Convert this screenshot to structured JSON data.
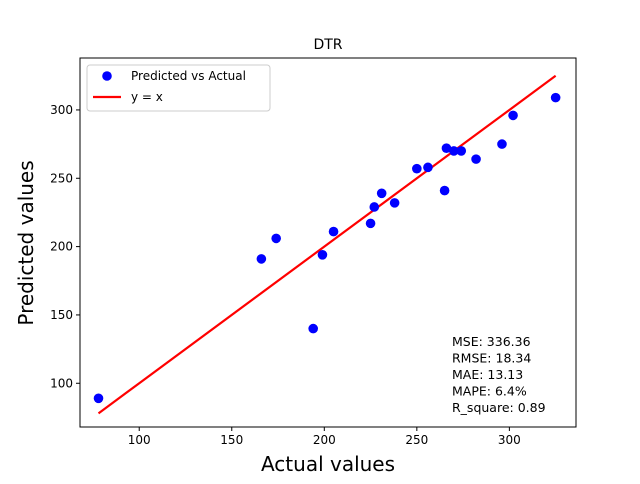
{
  "chart_data": {
    "type": "scatter",
    "title": "DTR",
    "xlabel": "Actual values",
    "ylabel": "Predicted values",
    "xlim": [
      68,
      336
    ],
    "ylim": [
      68,
      338
    ],
    "xticks": [
      100,
      150,
      200,
      250,
      300
    ],
    "yticks": [
      100,
      150,
      200,
      250,
      300
    ],
    "grid": false,
    "legend_position": "upper-left",
    "colors": {
      "points": "#0000ff",
      "line": "#ff0000"
    },
    "series": [
      {
        "name": "Predicted vs Actual",
        "type": "scatter",
        "points": [
          [
            78,
            89
          ],
          [
            166,
            191
          ],
          [
            174,
            206
          ],
          [
            194,
            140
          ],
          [
            199,
            194
          ],
          [
            205,
            211
          ],
          [
            225,
            217
          ],
          [
            227,
            229
          ],
          [
            231,
            239
          ],
          [
            238,
            232
          ],
          [
            250,
            257
          ],
          [
            256,
            258
          ],
          [
            265,
            241
          ],
          [
            266,
            272
          ],
          [
            270,
            270
          ],
          [
            274,
            270
          ],
          [
            282,
            264
          ],
          [
            296,
            275
          ],
          [
            302,
            296
          ],
          [
            325,
            309
          ]
        ]
      },
      {
        "name": "y = x",
        "type": "line",
        "points": [
          [
            78,
            78
          ],
          [
            325,
            325
          ]
        ]
      }
    ],
    "annotation_lines": [
      "MSE: 336.36",
      "RMSE: 18.34",
      "MAE: 13.13",
      "MAPE: 6.4%",
      "R_square: 0.89"
    ]
  }
}
